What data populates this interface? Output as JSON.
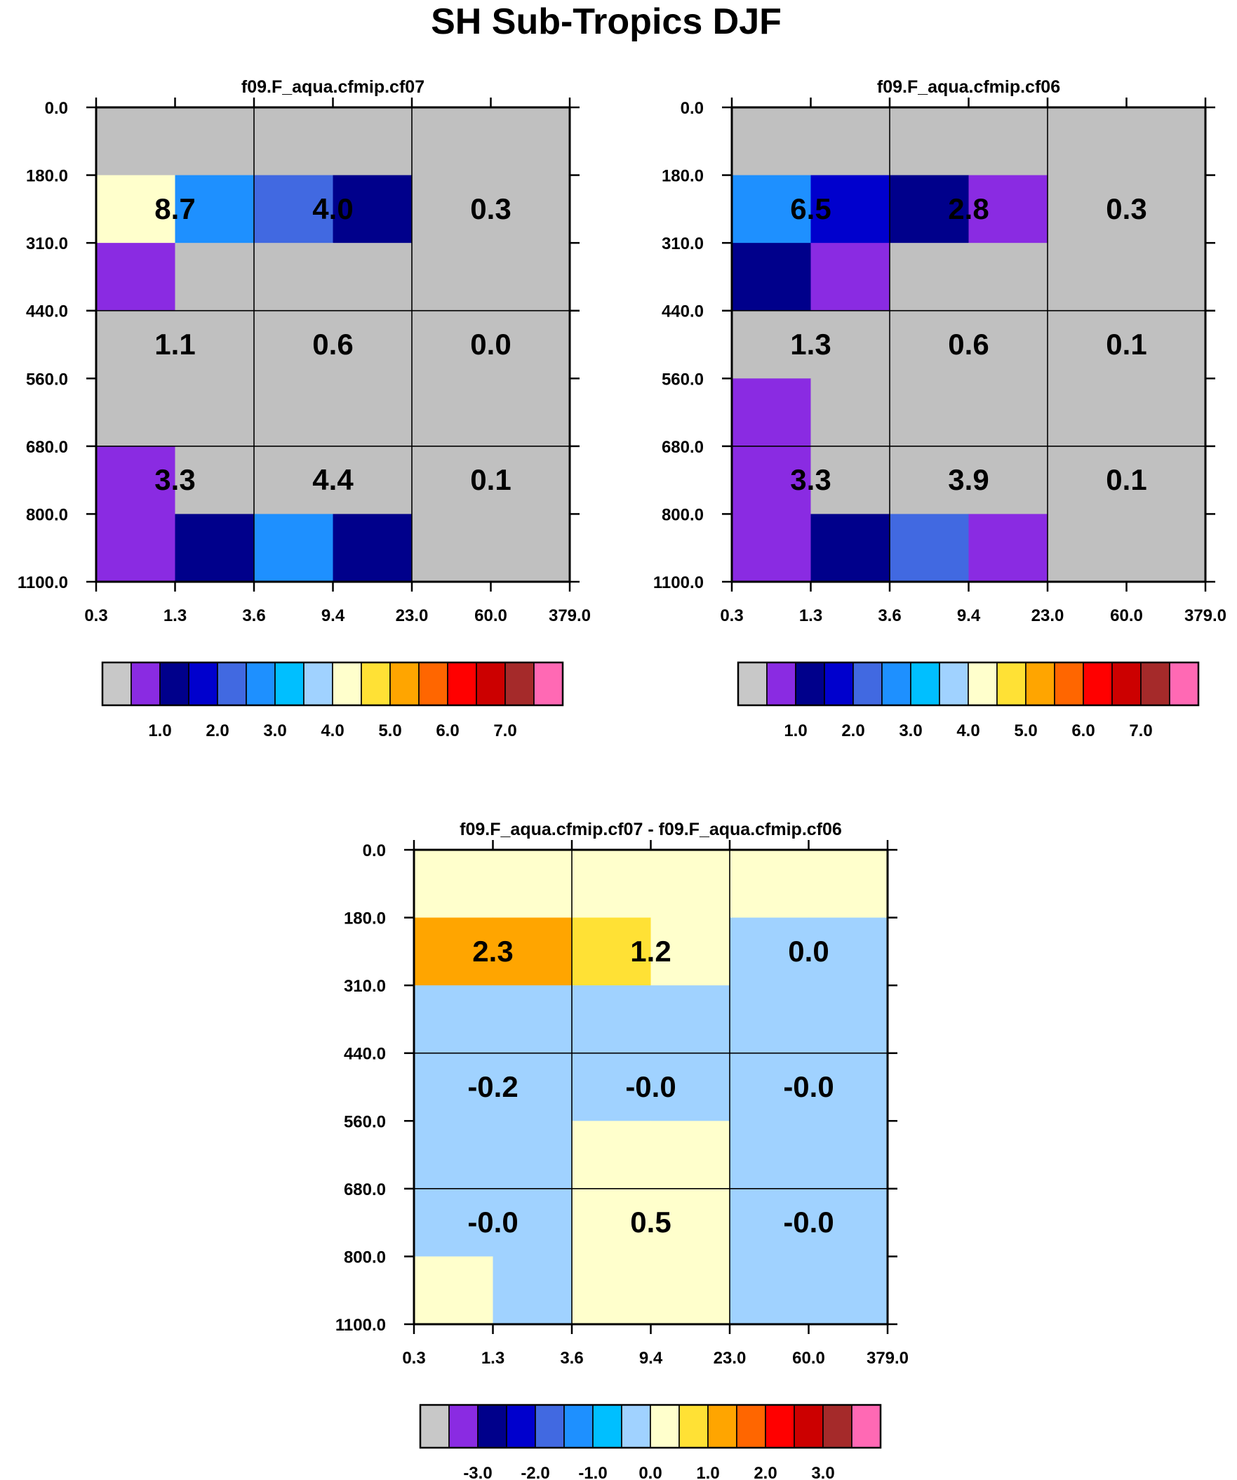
{
  "figure": {
    "title": "SH Sub-Tropics DJF"
  },
  "chart_data": [
    {
      "type": "heatmap",
      "title": "f09.F_aqua.cfmip.cf07",
      "x_ticks": [
        "0.3",
        "1.3",
        "3.6",
        "9.4",
        "23.0",
        "60.0",
        "379.0"
      ],
      "y_ticks": [
        "0.0",
        "180.0",
        "310.0",
        "440.0",
        "560.0",
        "680.0",
        "800.0",
        "1100.0"
      ],
      "cells": [
        [
          "#c0c0c0",
          "#c0c0c0",
          "#c0c0c0",
          "#c0c0c0",
          "#c0c0c0",
          "#c0c0c0"
        ],
        [
          "#ffffcc",
          "#1e90ff",
          "#4169e1",
          "#00008b",
          "#c0c0c0",
          "#c0c0c0"
        ],
        [
          "#8a2be2",
          "#c0c0c0",
          "#c0c0c0",
          "#c0c0c0",
          "#c0c0c0",
          "#c0c0c0"
        ],
        [
          "#c0c0c0",
          "#c0c0c0",
          "#c0c0c0",
          "#c0c0c0",
          "#c0c0c0",
          "#c0c0c0"
        ],
        [
          "#c0c0c0",
          "#c0c0c0",
          "#c0c0c0",
          "#c0c0c0",
          "#c0c0c0",
          "#c0c0c0"
        ],
        [
          "#8a2be2",
          "#c0c0c0",
          "#c0c0c0",
          "#c0c0c0",
          "#c0c0c0",
          "#c0c0c0"
        ],
        [
          "#8a2be2",
          "#00008b",
          "#1e90ff",
          "#00008b",
          "#c0c0c0",
          "#c0c0c0"
        ]
      ],
      "annotations": [
        [
          "8.7",
          "4.0",
          "0.3"
        ],
        [
          "1.1",
          "0.6",
          "0.0"
        ],
        [
          "3.3",
          "4.4",
          "0.1"
        ]
      ],
      "colorbar": {
        "colors": [
          "#c8c8c8",
          "#8a2be2",
          "#00008b",
          "#0000cd",
          "#4169e1",
          "#1e90ff",
          "#00bfff",
          "#a0d2ff",
          "#ffffcc",
          "#ffe135",
          "#ffa500",
          "#ff6600",
          "#ff0000",
          "#cc0000",
          "#a52a2a",
          "#ff69b4"
        ],
        "labels": [
          "1.0",
          "2.0",
          "3.0",
          "4.0",
          "5.0",
          "6.0",
          "7.0"
        ]
      }
    },
    {
      "type": "heatmap",
      "title": "f09.F_aqua.cfmip.cf06",
      "x_ticks": [
        "0.3",
        "1.3",
        "3.6",
        "9.4",
        "23.0",
        "60.0",
        "379.0"
      ],
      "y_ticks": [
        "0.0",
        "180.0",
        "310.0",
        "440.0",
        "560.0",
        "680.0",
        "800.0",
        "1100.0"
      ],
      "cells": [
        [
          "#c0c0c0",
          "#c0c0c0",
          "#c0c0c0",
          "#c0c0c0",
          "#c0c0c0",
          "#c0c0c0"
        ],
        [
          "#1e90ff",
          "#0000cd",
          "#00008b",
          "#8a2be2",
          "#c0c0c0",
          "#c0c0c0"
        ],
        [
          "#00008b",
          "#8a2be2",
          "#c0c0c0",
          "#c0c0c0",
          "#c0c0c0",
          "#c0c0c0"
        ],
        [
          "#c0c0c0",
          "#c0c0c0",
          "#c0c0c0",
          "#c0c0c0",
          "#c0c0c0",
          "#c0c0c0"
        ],
        [
          "#8a2be2",
          "#c0c0c0",
          "#c0c0c0",
          "#c0c0c0",
          "#c0c0c0",
          "#c0c0c0"
        ],
        [
          "#8a2be2",
          "#c0c0c0",
          "#c0c0c0",
          "#c0c0c0",
          "#c0c0c0",
          "#c0c0c0"
        ],
        [
          "#8a2be2",
          "#00008b",
          "#4169e1",
          "#8a2be2",
          "#c0c0c0",
          "#c0c0c0"
        ]
      ],
      "annotations": [
        [
          "6.5",
          "2.8",
          "0.3"
        ],
        [
          "1.3",
          "0.6",
          "0.1"
        ],
        [
          "3.3",
          "3.9",
          "0.1"
        ]
      ],
      "colorbar": {
        "colors": [
          "#c8c8c8",
          "#8a2be2",
          "#00008b",
          "#0000cd",
          "#4169e1",
          "#1e90ff",
          "#00bfff",
          "#a0d2ff",
          "#ffffcc",
          "#ffe135",
          "#ffa500",
          "#ff6600",
          "#ff0000",
          "#cc0000",
          "#a52a2a",
          "#ff69b4"
        ],
        "labels": [
          "1.0",
          "2.0",
          "3.0",
          "4.0",
          "5.0",
          "6.0",
          "7.0"
        ]
      }
    },
    {
      "type": "heatmap",
      "title": "f09.F_aqua.cfmip.cf07 - f09.F_aqua.cfmip.cf06",
      "x_ticks": [
        "0.3",
        "1.3",
        "3.6",
        "9.4",
        "23.0",
        "60.0",
        "379.0"
      ],
      "y_ticks": [
        "0.0",
        "180.0",
        "310.0",
        "440.0",
        "560.0",
        "680.0",
        "800.0",
        "1100.0"
      ],
      "cells": [
        [
          "#ffffcc",
          "#ffffcc",
          "#ffffcc",
          "#ffffcc",
          "#ffffcc",
          "#ffffcc"
        ],
        [
          "#ffa500",
          "#ffa500",
          "#ffe135",
          "#ffffcc",
          "#a0d2ff",
          "#a0d2ff"
        ],
        [
          "#a0d2ff",
          "#a0d2ff",
          "#a0d2ff",
          "#a0d2ff",
          "#a0d2ff",
          "#a0d2ff"
        ],
        [
          "#a0d2ff",
          "#a0d2ff",
          "#a0d2ff",
          "#a0d2ff",
          "#a0d2ff",
          "#a0d2ff"
        ],
        [
          "#a0d2ff",
          "#a0d2ff",
          "#ffffcc",
          "#ffffcc",
          "#a0d2ff",
          "#a0d2ff"
        ],
        [
          "#a0d2ff",
          "#a0d2ff",
          "#ffffcc",
          "#ffffcc",
          "#a0d2ff",
          "#a0d2ff"
        ],
        [
          "#ffffcc",
          "#a0d2ff",
          "#ffffcc",
          "#ffffcc",
          "#a0d2ff",
          "#a0d2ff"
        ]
      ],
      "annotations": [
        [
          "2.3",
          "1.2",
          "0.0"
        ],
        [
          "-0.2",
          "-0.0",
          "-0.0"
        ],
        [
          "-0.0",
          "0.5",
          "-0.0"
        ]
      ],
      "colorbar": {
        "colors": [
          "#c8c8c8",
          "#8a2be2",
          "#00008b",
          "#0000cd",
          "#4169e1",
          "#1e90ff",
          "#00bfff",
          "#a0d2ff",
          "#ffffcc",
          "#ffe135",
          "#ffa500",
          "#ff6600",
          "#ff0000",
          "#cc0000",
          "#a52a2a",
          "#ff69b4"
        ],
        "labels": [
          "-3.0",
          "-2.0",
          "-1.0",
          "0.0",
          "1.0",
          "2.0",
          "3.0"
        ]
      }
    }
  ]
}
